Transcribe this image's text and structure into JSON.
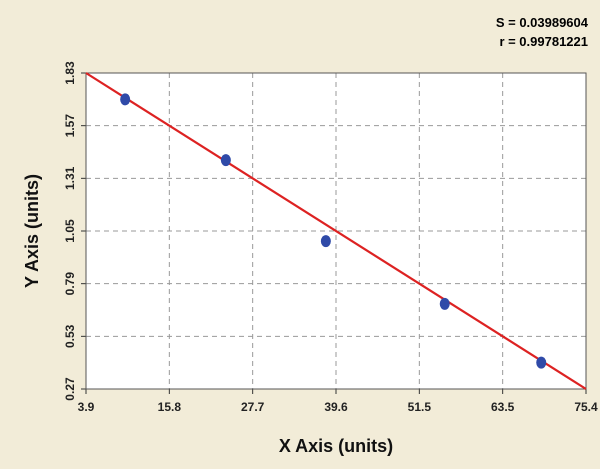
{
  "stats": {
    "s_label": "S = 0.03989604",
    "r_label": "r = 0.99781221"
  },
  "chart_data": {
    "type": "scatter",
    "title": "",
    "xlabel": "X Axis (units)",
    "ylabel": "Y Axis (units)",
    "xlim": [
      3.9,
      75.4
    ],
    "ylim": [
      0.27,
      1.83
    ],
    "x_ticks": [
      "3.9",
      "15.8",
      "27.7",
      "39.6",
      "51.5",
      "63.5",
      "75.4"
    ],
    "y_ticks": [
      "0.27",
      "0.53",
      "0.79",
      "1.05",
      "1.31",
      "1.57",
      "1.83"
    ],
    "grid": true,
    "points": {
      "x": [
        9.5,
        23.9,
        38.2,
        55.2,
        69.0
      ],
      "y": [
        1.7,
        1.4,
        1.0,
        0.69,
        0.4
      ],
      "color": "#2f4aa8"
    },
    "fit_line": {
      "x": [
        3.9,
        75.4
      ],
      "y": [
        1.83,
        0.27
      ],
      "color": "#dd2222"
    },
    "background_color": "#f2ecd8",
    "plot_background": "#ffffff"
  }
}
